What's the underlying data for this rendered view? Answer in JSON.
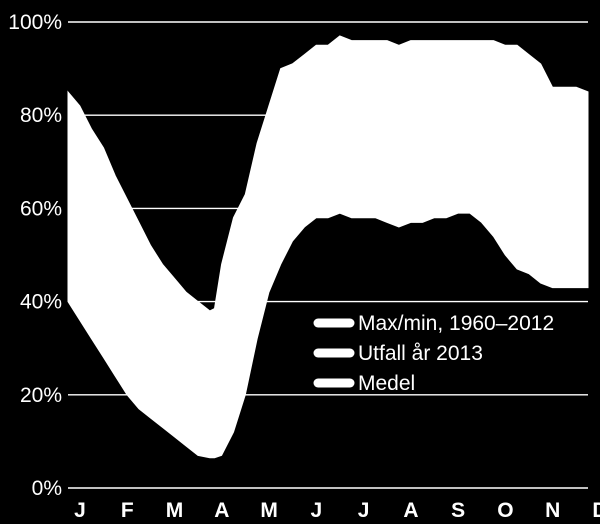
{
  "chart_data": {
    "type": "area",
    "y_ticks": [
      "100%",
      "80%",
      "60%",
      "40%",
      "20%",
      "0%"
    ],
    "y_values": [
      100,
      80,
      60,
      40,
      20,
      0
    ],
    "ylim": [
      0,
      100
    ],
    "x_ticks": [
      "J",
      "F",
      "M",
      "A",
      "M",
      "J",
      "J",
      "A",
      "S",
      "O",
      "N",
      "D"
    ],
    "grid": true,
    "legend_position": "bottom-right",
    "series": [
      {
        "name": "Max/min, 1960–2012",
        "kind": "band",
        "x": [
          0,
          0.25,
          0.5,
          0.75,
          1.0,
          1.25,
          1.5,
          1.75,
          2.0,
          2.25,
          2.5,
          2.75,
          3.0,
          3.1,
          3.25,
          3.5,
          3.75,
          4.0,
          4.25,
          4.5,
          4.75,
          5.0,
          5.25,
          5.5,
          5.75,
          6.0,
          6.25,
          6.5,
          6.75,
          7.0,
          7.25,
          7.5,
          7.75,
          8.0,
          8.25,
          8.5,
          8.75,
          9.0,
          9.25,
          9.5,
          9.75,
          10.0,
          10.25,
          10.5,
          10.75,
          11.0
        ],
        "upper": [
          85,
          82,
          77,
          73,
          67,
          62,
          57,
          52,
          48,
          45,
          42,
          40,
          38,
          38.5,
          48,
          58,
          63,
          74,
          82,
          90,
          91,
          93,
          95,
          95,
          97,
          96,
          96,
          96,
          96,
          95,
          96,
          96,
          96,
          96,
          96,
          96,
          96,
          96,
          95,
          95,
          93,
          91,
          86,
          86,
          86,
          85
        ],
        "lower": [
          40,
          36,
          32,
          28,
          24,
          20,
          17,
          15,
          13,
          11,
          9,
          7,
          6.5,
          6.5,
          7,
          12,
          20,
          32,
          42,
          48,
          53,
          56,
          58,
          58,
          59,
          58,
          58,
          58,
          57,
          56,
          57,
          57,
          58,
          58,
          59,
          59,
          57,
          54,
          50,
          47,
          46,
          44,
          43,
          43,
          43,
          43
        ]
      },
      {
        "name": "Utfall år 2013",
        "kind": "line",
        "values": []
      },
      {
        "name": "Medel",
        "kind": "line",
        "values": []
      }
    ]
  }
}
